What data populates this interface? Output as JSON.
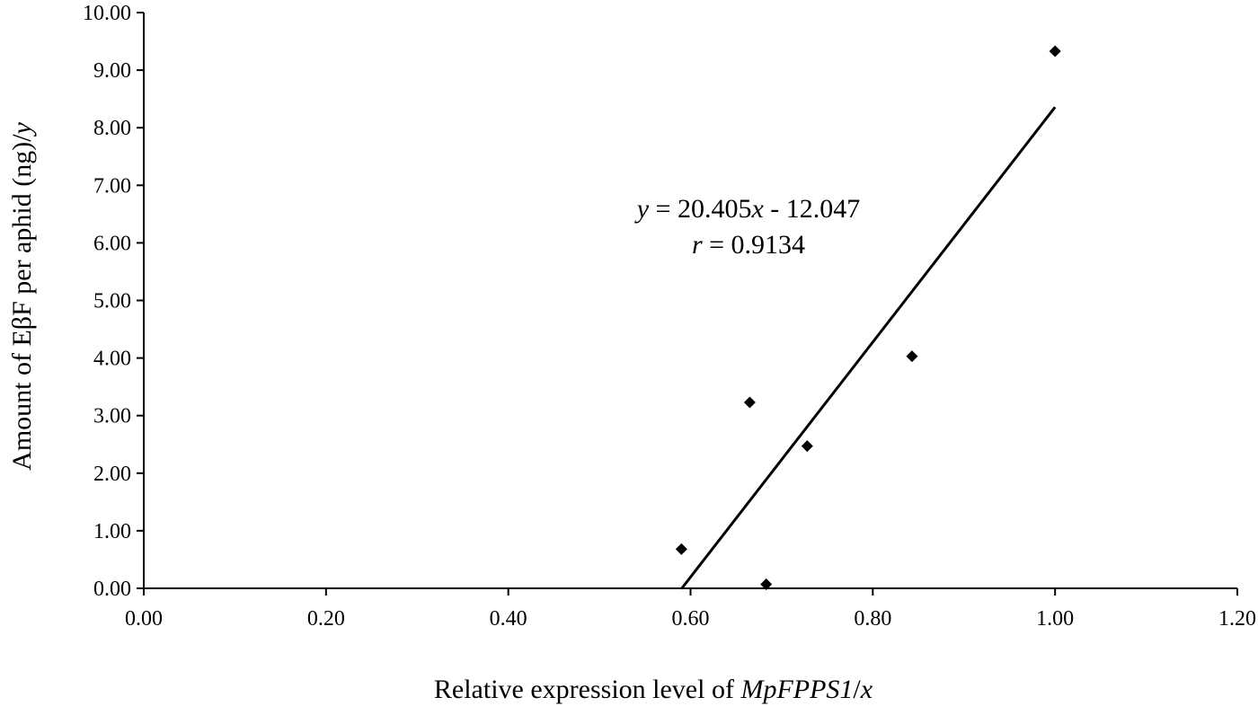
{
  "chart_data": {
    "type": "scatter",
    "xlabel_parts": [
      {
        "text": "Relative expression level of ",
        "italic": false
      },
      {
        "text": "MpFPPS1",
        "italic": true
      },
      {
        "text": "/",
        "italic": false
      },
      {
        "text": "x",
        "italic": true
      }
    ],
    "ylabel_parts": [
      {
        "text": "Amount of EβF per aphid (ng)/",
        "italic": false
      },
      {
        "text": "y",
        "italic": true
      }
    ],
    "xlim": [
      0,
      1.2
    ],
    "ylim": [
      0,
      10
    ],
    "x_ticks": [
      "0.00",
      "0.20",
      "0.40",
      "0.60",
      "0.80",
      "1.00",
      "1.20"
    ],
    "y_ticks": [
      "0.00",
      "1.00",
      "2.00",
      "3.00",
      "4.00",
      "5.00",
      "6.00",
      "7.00",
      "8.00",
      "9.00",
      "10.00"
    ],
    "grid": false,
    "marker": "diamond",
    "marker_color": "#000000",
    "points": [
      {
        "x": 0.59,
        "y": 0.68
      },
      {
        "x": 0.665,
        "y": 3.23
      },
      {
        "x": 0.683,
        "y": 0.07
      },
      {
        "x": 0.728,
        "y": 2.47
      },
      {
        "x": 0.843,
        "y": 4.03
      },
      {
        "x": 1.0,
        "y": 9.33
      }
    ],
    "trendline": {
      "slope": 20.405,
      "intercept": -12.047,
      "x_range": [
        0.59,
        1.0
      ]
    },
    "annotations": {
      "equation_parts": [
        {
          "text": "y",
          "italic": true
        },
        {
          "text": " = 20.405",
          "italic": false
        },
        {
          "text": "x",
          "italic": true
        },
        {
          "text": " - 12.047",
          "italic": false
        }
      ],
      "r_parts": [
        {
          "text": "r",
          "italic": true
        },
        {
          "text": " = 0.9134",
          "italic": false
        }
      ]
    }
  }
}
